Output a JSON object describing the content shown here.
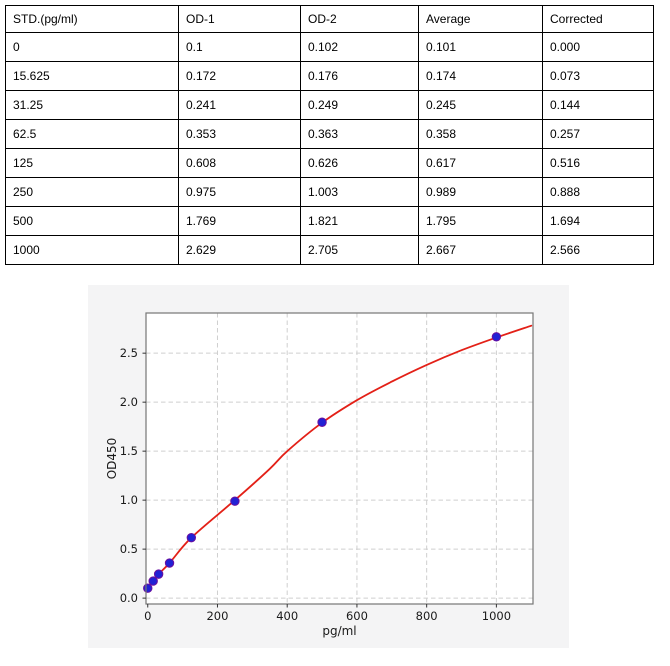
{
  "table": {
    "headers": [
      "STD.(pg/ml)",
      "OD-1",
      "OD-2",
      "Average",
      "Corrected"
    ],
    "rows": [
      [
        "0",
        "0.1",
        "0.102",
        "0.101",
        "0.000"
      ],
      [
        "15.625",
        "0.172",
        "0.176",
        "0.174",
        "0.073"
      ],
      [
        "31.25",
        "0.241",
        "0.249",
        "0.245",
        "0.144"
      ],
      [
        "62.5",
        "0.353",
        "0.363",
        "0.358",
        "0.257"
      ],
      [
        "125",
        "0.608",
        "0.626",
        "0.617",
        "0.516"
      ],
      [
        "250",
        "0.975",
        "1.003",
        "0.989",
        "0.888"
      ],
      [
        "500",
        "1.769",
        "1.821",
        "1.795",
        "1.694"
      ],
      [
        "1000",
        "2.629",
        "2.705",
        "2.667",
        "2.566"
      ]
    ]
  },
  "chart_data": {
    "type": "scatter",
    "title": "",
    "xlabel": "pg/ml",
    "ylabel": "OD450",
    "xlim": [
      -5,
      1105
    ],
    "ylim": [
      -0.06,
      2.91
    ],
    "grid": true,
    "legend": "none",
    "x_ticks": [
      0,
      200,
      400,
      600,
      800,
      1000
    ],
    "x_tick_labels": [
      "0",
      "200",
      "400",
      "600",
      "800",
      "1000"
    ],
    "y_ticks": [
      0,
      0.5,
      1,
      1.5,
      2,
      2.5
    ],
    "y_tick_labels": [
      "0.0",
      "0.5",
      "1.0",
      "1.5",
      "2.0",
      "2.5"
    ],
    "grid_x": [
      200,
      400,
      600,
      800,
      1000
    ],
    "grid_y": [
      0,
      0.5,
      1,
      1.5,
      2,
      2.5
    ],
    "series": [
      {
        "name": "standard-points",
        "type": "scatter",
        "x": [
          0,
          15.625,
          31.25,
          62.5,
          125,
          250,
          500,
          1000
        ],
        "y": [
          0.101,
          0.174,
          0.245,
          0.358,
          0.617,
          0.989,
          1.795,
          2.667
        ]
      },
      {
        "name": "fitted-curve",
        "type": "line",
        "x": [
          0,
          15.625,
          31.25,
          62.5,
          125,
          250,
          350,
          400,
          500,
          600,
          700,
          800,
          900,
          1000,
          1100
        ],
        "y": [
          0.105,
          0.174,
          0.245,
          0.358,
          0.617,
          1.0,
          1.32,
          1.5,
          1.79,
          2.02,
          2.21,
          2.38,
          2.53,
          2.66,
          2.78
        ]
      }
    ],
    "colors": {
      "curve": "#e32017",
      "marker_fill": "#2121d4",
      "marker_edge": "#6b0f9e",
      "grid": "#cfcfcf",
      "spine": "#767676",
      "tick": "#333333",
      "text": "#1a1a1a",
      "figure_bg": "#f4f4f5",
      "plot_bg": "#ffffff"
    }
  }
}
